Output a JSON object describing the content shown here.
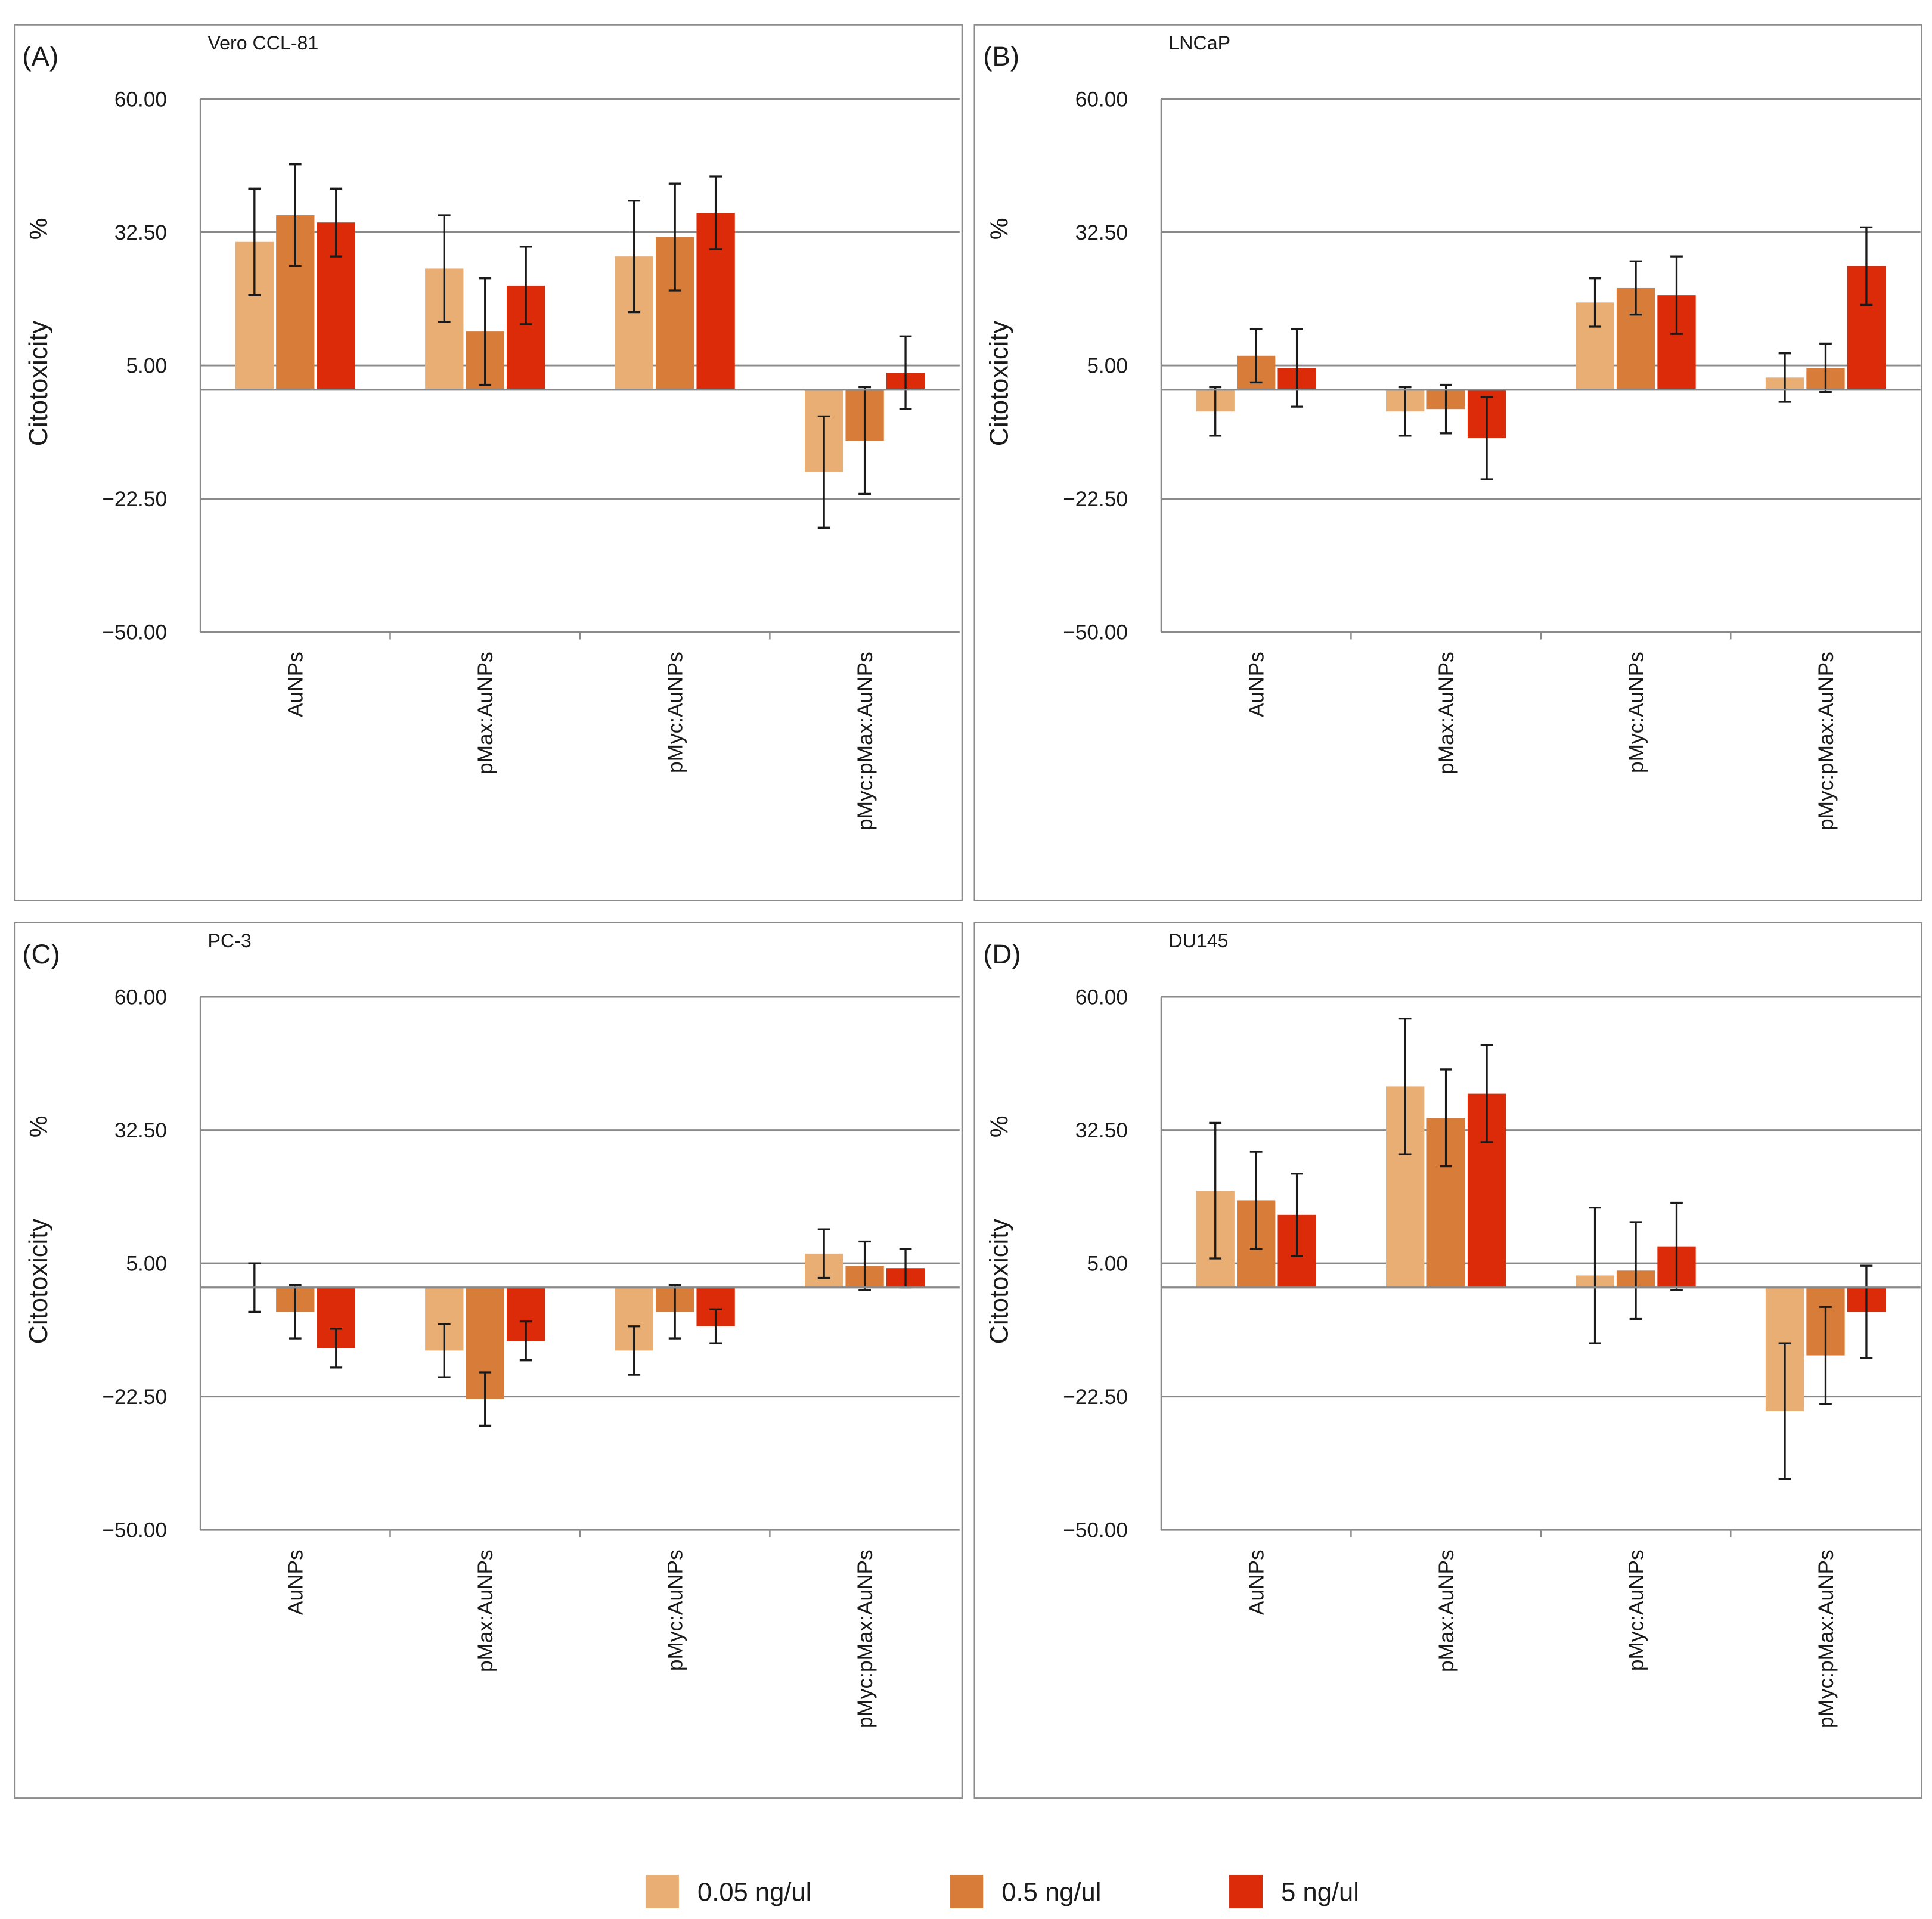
{
  "figure": {
    "legend": [
      {
        "label": "0.05 ng/ul",
        "color": "#e8ae74"
      },
      {
        "label": "0.5 ng/ul",
        "color": "#d87c3a"
      },
      {
        "label": "5 ng/ul",
        "color": "#db2b09"
      }
    ]
  },
  "chart_data": [
    {
      "type": "bar",
      "panel": "(A)",
      "title": "Vero  CCL-81",
      "ylabel": "Citotoxicity",
      "ylabel_unit": "%",
      "ylim": [
        -50,
        60
      ],
      "yticks": [
        -50,
        -22.5,
        5,
        32.5,
        60
      ],
      "ytick_labels": [
        "−50.00",
        "−22.50",
        "5.00",
        "32.50",
        "60.00"
      ],
      "categories": [
        "AuNPs",
        "pMax:AuNPs",
        "pMyc:AuNPs",
        "pMyc:pMax:AuNPs"
      ],
      "series": [
        {
          "name": "0.05 ng/ul",
          "values": [
            30.5,
            25,
            27.5,
            -17
          ],
          "errors": [
            11,
            11,
            11.5,
            11.5
          ]
        },
        {
          "name": "0.5 ng/ul",
          "values": [
            36,
            12,
            31.5,
            -10.5
          ],
          "errors": [
            10.5,
            11,
            11,
            11
          ]
        },
        {
          "name": "5 ng/ul",
          "values": [
            34.5,
            21.5,
            36.5,
            3.5
          ],
          "errors": [
            7,
            8,
            7.5,
            7.5
          ]
        }
      ]
    },
    {
      "type": "bar",
      "panel": "(B)",
      "title": "LNCaP",
      "ylabel": "Citotoxicity",
      "ylabel_unit": "%",
      "ylim": [
        -50,
        60
      ],
      "yticks": [
        -50,
        -22.5,
        5,
        32.5,
        60
      ],
      "ytick_labels": [
        "−50.00",
        "−22.50",
        "5.00",
        "32.50",
        "60.00"
      ],
      "categories": [
        "AuNPs",
        "pMax:AuNPs",
        "pMyc:AuNPs",
        "pMyc:pMax:AuNPs"
      ],
      "series": [
        {
          "name": "0.05 ng/ul",
          "values": [
            -4.5,
            -4.5,
            18,
            2.5
          ],
          "errors": [
            5,
            5,
            5,
            5
          ]
        },
        {
          "name": "0.5 ng/ul",
          "values": [
            7,
            -4,
            21,
            4.5
          ],
          "errors": [
            5.5,
            5,
            5.5,
            5
          ]
        },
        {
          "name": "5 ng/ul",
          "values": [
            4.5,
            -10,
            19.5,
            25.5
          ],
          "errors": [
            8,
            8.5,
            8,
            8
          ]
        }
      ]
    },
    {
      "type": "bar",
      "panel": "(C)",
      "title": "PC-3",
      "ylabel": "Citotoxicity",
      "ylabel_unit": "%",
      "ylim": [
        -50,
        60
      ],
      "yticks": [
        -50,
        -22.5,
        5,
        32.5,
        60
      ],
      "ytick_labels": [
        "−50.00",
        "−22.50",
        "5.00",
        "32.50",
        "60.00"
      ],
      "categories": [
        "AuNPs",
        "pMax:AuNPs",
        "pMyc:AuNPs",
        "pMyc:pMax:AuNPs"
      ],
      "series": [
        {
          "name": "0.05 ng/ul",
          "values": [
            0,
            -13,
            -13,
            7
          ],
          "errors": [
            5,
            5.5,
            5,
            5
          ]
        },
        {
          "name": "0.5 ng/ul",
          "values": [
            -5,
            -23,
            -5,
            4.5
          ],
          "errors": [
            5.5,
            5.5,
            5.5,
            5
          ]
        },
        {
          "name": "5 ng/ul",
          "values": [
            -12.5,
            -11,
            -8,
            4
          ],
          "errors": [
            4,
            4,
            3.5,
            4
          ]
        }
      ]
    },
    {
      "type": "bar",
      "panel": "(D)",
      "title": "DU145",
      "ylabel": "Citotoxicity",
      "ylabel_unit": "%",
      "ylim": [
        -50,
        60
      ],
      "yticks": [
        -50,
        -22.5,
        5,
        32.5,
        60
      ],
      "ytick_labels": [
        "−50.00",
        "−22.50",
        "5.00",
        "32.50",
        "60.00"
      ],
      "categories": [
        "AuNPs",
        "pMax:AuNPs",
        "pMyc:AuNPs",
        "pMyc:pMax:AuNPs"
      ],
      "series": [
        {
          "name": "0.05 ng/ul",
          "values": [
            20,
            41.5,
            2.5,
            -25.5
          ],
          "errors": [
            14,
            14,
            14,
            14
          ]
        },
        {
          "name": "0.5 ng/ul",
          "values": [
            18,
            35,
            3.5,
            -14
          ],
          "errors": [
            10,
            10,
            10,
            10
          ]
        },
        {
          "name": "5 ng/ul",
          "values": [
            15,
            40,
            8.5,
            -5
          ],
          "errors": [
            8.5,
            10,
            9,
            9.5
          ]
        }
      ]
    }
  ]
}
